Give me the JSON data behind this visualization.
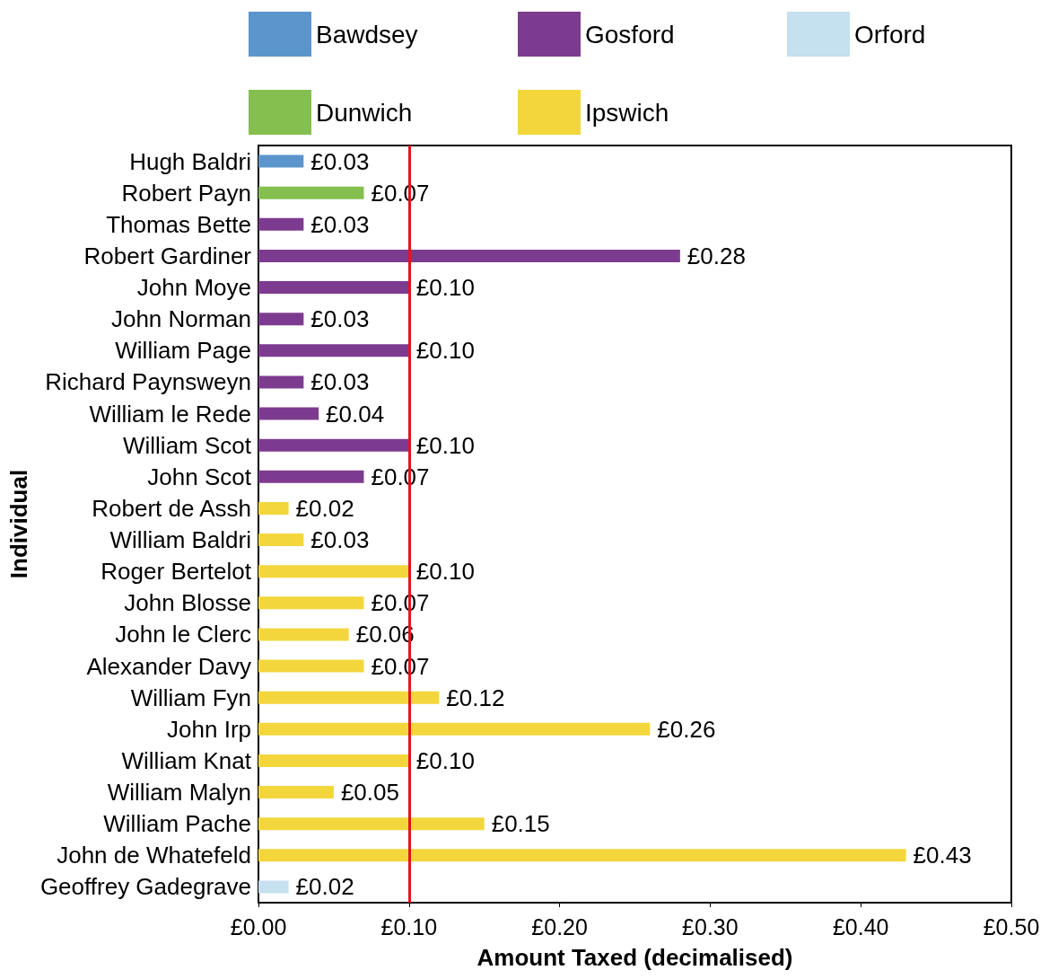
{
  "chart_data": {
    "type": "bar",
    "orientation": "horizontal",
    "stacked": true,
    "xlabel": "Amount Taxed (decimalised)",
    "ylabel": "Individual",
    "categories": [
      "Hugh Baldri",
      "Robert Payn",
      "Thomas Bette",
      "Robert Gardiner",
      "John Moye",
      "John Norman",
      "William Page",
      "Richard Paynsweyn",
      "William le Rede",
      "William Scot",
      "John Scot",
      "Robert de Assh",
      "William Baldri",
      "Roger Bertelot",
      "John Blosse",
      "John le Clerc",
      "Alexander Davy",
      "William Fyn",
      "John Irp",
      "William Knat",
      "William Malyn",
      "William Pache",
      "John de Whatefeld",
      "Geoffrey Gadegrave"
    ],
    "series": [
      {
        "name": "Bawdsey",
        "color": "#5b95cc",
        "values": [
          0.03,
          null,
          null,
          null,
          null,
          null,
          null,
          null,
          null,
          null,
          null,
          null,
          null,
          null,
          null,
          null,
          null,
          null,
          null,
          null,
          null,
          null,
          null,
          null
        ],
        "value_labels": [
          "£0.03",
          null,
          null,
          null,
          null,
          null,
          null,
          null,
          null,
          null,
          null,
          null,
          null,
          null,
          null,
          null,
          null,
          null,
          null,
          null,
          null,
          null,
          null,
          null
        ]
      },
      {
        "name": "Gosford",
        "color": "#7d3b8f",
        "values": [
          null,
          null,
          0.03,
          0.28,
          0.1,
          0.03,
          0.1,
          0.03,
          0.04,
          0.1,
          0.07,
          null,
          null,
          null,
          null,
          null,
          null,
          null,
          null,
          null,
          null,
          null,
          null,
          null
        ],
        "value_labels": [
          null,
          null,
          "£0.03",
          "£0.28",
          "£0.10",
          "£0.03",
          "£0.10",
          "£0.03",
          "£0.04",
          "£0.10",
          "£0.07",
          null,
          null,
          null,
          null,
          null,
          null,
          null,
          null,
          null,
          null,
          null,
          null,
          null
        ]
      },
      {
        "name": "Orford",
        "color": "#c5e0ee",
        "values": [
          null,
          null,
          null,
          null,
          null,
          null,
          null,
          null,
          null,
          null,
          null,
          null,
          null,
          null,
          null,
          null,
          null,
          null,
          null,
          null,
          null,
          null,
          null,
          0.02
        ],
        "value_labels": [
          null,
          null,
          null,
          null,
          null,
          null,
          null,
          null,
          null,
          null,
          null,
          null,
          null,
          null,
          null,
          null,
          null,
          null,
          null,
          null,
          null,
          null,
          null,
          "£0.02"
        ]
      },
      {
        "name": "Dunwich",
        "color": "#84bf4f",
        "values": [
          null,
          0.07,
          null,
          null,
          null,
          null,
          null,
          null,
          null,
          null,
          null,
          null,
          null,
          null,
          null,
          null,
          null,
          null,
          null,
          null,
          null,
          null,
          null,
          null
        ],
        "value_labels": [
          null,
          "£0.07",
          null,
          null,
          null,
          null,
          null,
          null,
          null,
          null,
          null,
          null,
          null,
          null,
          null,
          null,
          null,
          null,
          null,
          null,
          null,
          null,
          null,
          null
        ]
      },
      {
        "name": "Ipswich",
        "color": "#f3d63c",
        "values": [
          null,
          null,
          null,
          null,
          null,
          null,
          null,
          null,
          null,
          null,
          null,
          0.02,
          0.03,
          0.1,
          0.07,
          0.06,
          0.07,
          0.12,
          0.26,
          0.1,
          0.05,
          0.15,
          0.43,
          null
        ],
        "value_labels": [
          null,
          null,
          null,
          null,
          null,
          null,
          null,
          null,
          null,
          null,
          null,
          "£0.02",
          "£0.03",
          "£0.10",
          "£0.07",
          "£0.06",
          "£0.07",
          "£0.12",
          "£0.26",
          "£0.10",
          "£0.05",
          "£0.15",
          "£0.43",
          null
        ]
      }
    ],
    "xlim": [
      0,
      0.5
    ],
    "xticks": [
      {
        "value": 0,
        "label": "£0.00"
      },
      {
        "value": 0.1,
        "label": "£0.10"
      },
      {
        "value": 0.2,
        "label": "£0.20"
      },
      {
        "value": 0.3,
        "label": "£0.30"
      },
      {
        "value": 0.4,
        "label": "£0.40"
      },
      {
        "value": 0.5,
        "label": "£0.50"
      }
    ],
    "ref_lines": [
      {
        "axis": "x",
        "value": 0.1,
        "color": "#e3151f"
      }
    ],
    "grid": false,
    "legend": "top"
  }
}
